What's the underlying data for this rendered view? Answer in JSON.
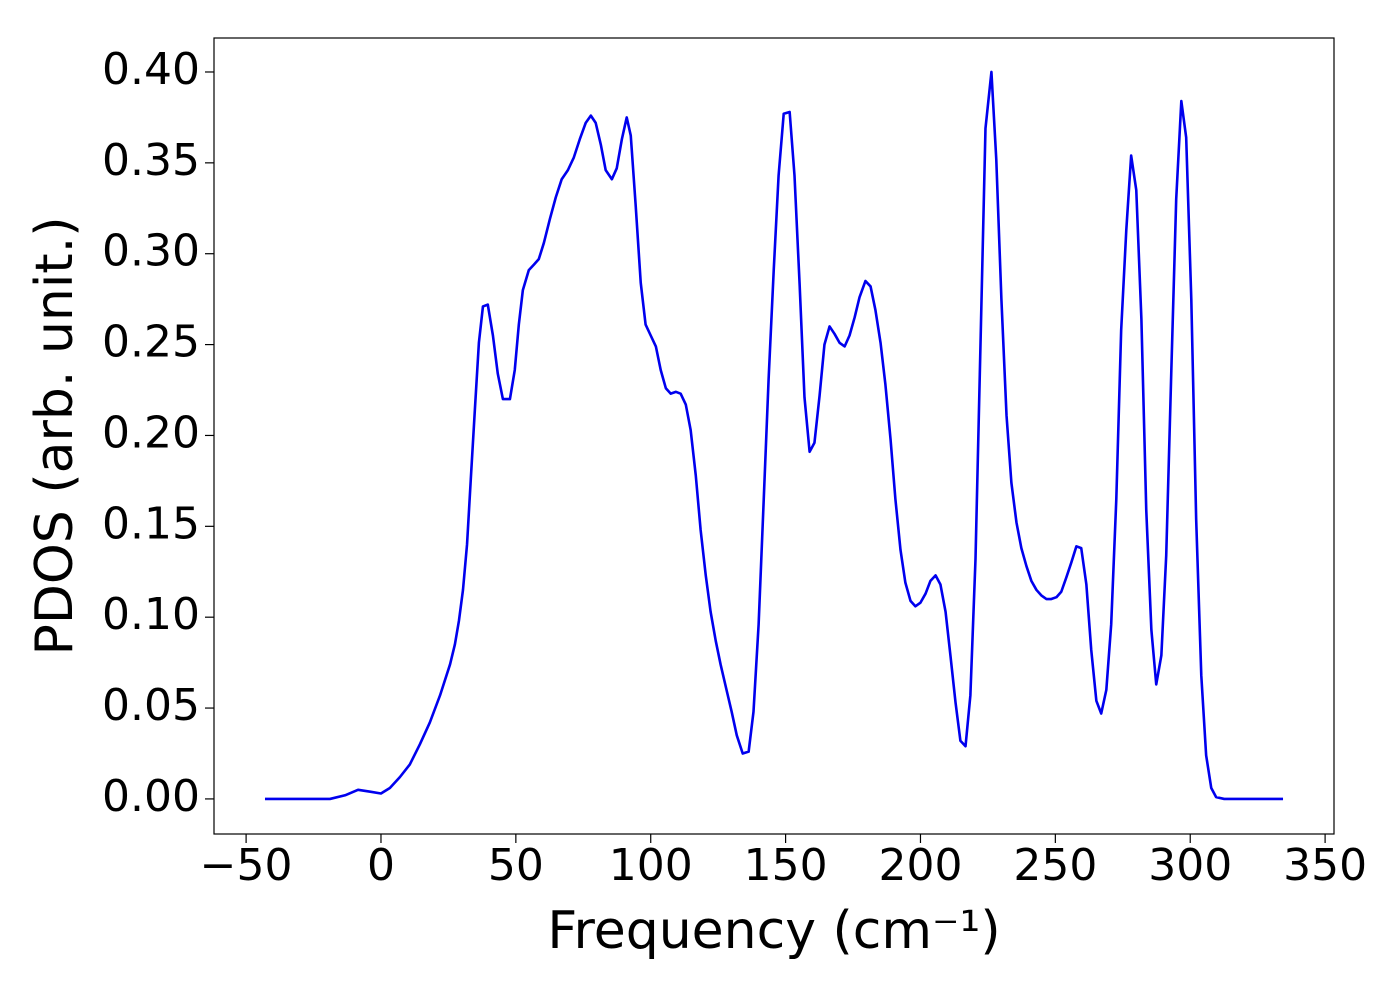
{
  "chart_data": {
    "type": "line",
    "xlabel": "Frequency (cm⁻¹)",
    "ylabel": "PDOS (arb. unit.)",
    "color": "#0000ee",
    "x": [
      -43,
      -18.9,
      -13.3,
      -8.5,
      -4,
      0,
      3.3,
      7,
      10.7,
      14.4,
      18.1,
      21.9,
      25.6,
      27.4,
      28.9,
      30.4,
      31.9,
      33.3,
      34.8,
      36.3,
      37.8,
      39.6,
      41.5,
      43.3,
      45.2,
      47.8,
      49.6,
      51.1,
      52.6,
      54.8,
      56.7,
      58.5,
      60.4,
      62.6,
      64.8,
      67,
      69.3,
      71.5,
      73.7,
      75.9,
      77.8,
      79.6,
      81.5,
      83.3,
      85.6,
      87.4,
      89.3,
      91.1,
      92.6,
      94.4,
      96.3,
      98.1,
      100,
      101.9,
      103.7,
      105.6,
      107.4,
      109.3,
      111.1,
      113,
      114.8,
      116.7,
      118.5,
      120.4,
      122.2,
      124.1,
      125.9,
      128.1,
      130,
      131.9,
      134.1,
      136.3,
      138.1,
      140,
      141.9,
      143.7,
      145.6,
      147.4,
      149.3,
      151.5,
      153.3,
      155.2,
      157,
      158.9,
      160.7,
      162.6,
      164.4,
      166.3,
      168.1,
      170,
      171.9,
      173.7,
      175.6,
      177.4,
      179.6,
      181.5,
      183.3,
      185.2,
      187,
      188.9,
      190.7,
      192.6,
      194.4,
      196.3,
      198.1,
      200,
      201.9,
      203.7,
      205.6,
      207.4,
      209.3,
      211.1,
      213,
      214.8,
      216.7,
      218.5,
      220.4,
      222.2,
      224.1,
      226.3,
      228.1,
      230,
      231.9,
      233.7,
      235.6,
      237.4,
      239.3,
      241.1,
      243,
      244.8,
      246.7,
      248.5,
      250.4,
      252.2,
      254.1,
      255.9,
      257.8,
      259.6,
      261.5,
      263.3,
      265.2,
      267,
      268.9,
      270.7,
      272.6,
      274.4,
      276.3,
      278.1,
      280,
      281.9,
      283.7,
      285.6,
      287.4,
      289.3,
      291.1,
      293,
      294.8,
      296.7,
      298.5,
      300.4,
      302.2,
      304.1,
      305.9,
      307.8,
      309.6,
      312.6,
      334.4
    ],
    "values": [
      0,
      0,
      0.002,
      0.005,
      0.004,
      0.003,
      0.006,
      0.012,
      0.019,
      0.03,
      0.042,
      0.057,
      0.074,
      0.085,
      0.098,
      0.115,
      0.14,
      0.176,
      0.214,
      0.251,
      0.271,
      0.272,
      0.255,
      0.234,
      0.22,
      0.22,
      0.236,
      0.261,
      0.28,
      0.291,
      0.294,
      0.297,
      0.306,
      0.319,
      0.331,
      0.341,
      0.346,
      0.353,
      0.363,
      0.372,
      0.376,
      0.372,
      0.36,
      0.346,
      0.341,
      0.347,
      0.363,
      0.375,
      0.365,
      0.327,
      0.284,
      0.261,
      0.255,
      0.249,
      0.236,
      0.226,
      0.223,
      0.224,
      0.223,
      0.217,
      0.203,
      0.178,
      0.148,
      0.123,
      0.103,
      0.087,
      0.074,
      0.06,
      0.048,
      0.035,
      0.025,
      0.026,
      0.048,
      0.096,
      0.165,
      0.231,
      0.291,
      0.343,
      0.377,
      0.378,
      0.343,
      0.283,
      0.221,
      0.191,
      0.196,
      0.222,
      0.25,
      0.26,
      0.256,
      0.251,
      0.249,
      0.255,
      0.265,
      0.276,
      0.285,
      0.282,
      0.269,
      0.251,
      0.228,
      0.198,
      0.165,
      0.137,
      0.119,
      0.109,
      0.106,
      0.108,
      0.113,
      0.12,
      0.123,
      0.118,
      0.103,
      0.079,
      0.053,
      0.032,
      0.029,
      0.057,
      0.132,
      0.247,
      0.369,
      0.4,
      0.352,
      0.275,
      0.211,
      0.174,
      0.152,
      0.138,
      0.128,
      0.12,
      0.115,
      0.112,
      0.11,
      0.11,
      0.111,
      0.114,
      0.122,
      0.13,
      0.139,
      0.138,
      0.118,
      0.082,
      0.054,
      0.047,
      0.06,
      0.096,
      0.165,
      0.258,
      0.313,
      0.354,
      0.335,
      0.264,
      0.159,
      0.093,
      0.063,
      0.079,
      0.134,
      0.236,
      0.33,
      0.384,
      0.364,
      0.275,
      0.154,
      0.068,
      0.024,
      0.006,
      0.001,
      0,
      0
    ],
    "xlim": [
      -61.9,
      353.3
    ],
    "ylim": [
      -0.0193,
      0.4187
    ],
    "xticks": [
      {
        "value": -50,
        "label": "−50"
      },
      0,
      50,
      100,
      150,
      200,
      250,
      300,
      350
    ],
    "yticks": [
      {
        "value": 0,
        "label": "0.00"
      },
      {
        "value": 0.05,
        "label": "0.05"
      },
      {
        "value": 0.1,
        "label": "0.10"
      },
      {
        "value": 0.15,
        "label": "0.15"
      },
      {
        "value": 0.2,
        "label": "0.20"
      },
      {
        "value": 0.25,
        "label": "0.25"
      },
      {
        "value": 0.3,
        "label": "0.30"
      },
      {
        "value": 0.35,
        "label": "0.35"
      },
      {
        "value": 0.4,
        "label": "0.40"
      }
    ]
  }
}
